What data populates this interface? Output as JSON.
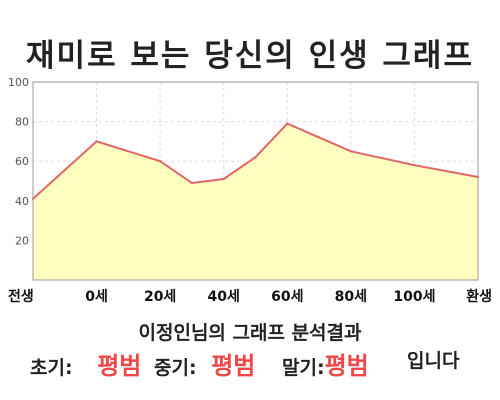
{
  "title": "재미로 보는 당신의 인생 그래프",
  "subtitle": "이정인님의 그래프 분석결과",
  "results": {
    "early_label": "초기:",
    "early_value": "평범",
    "mid_label": "중기:",
    "mid_value": "평범",
    "late_label": "말기:",
    "late_value": "평범",
    "ending": "입니다"
  },
  "colors": {
    "line": "#e06666",
    "fill": "#ffffc0",
    "grade": "#f04848"
  },
  "chart_data": {
    "type": "area",
    "title": "재미로 보는 당신의 인생 그래프",
    "x_categories": [
      "전생",
      "0세",
      "20세",
      "40세",
      "60세",
      "80세",
      "100세",
      "환생"
    ],
    "y_ticks": [
      "100",
      "80",
      "60",
      "40",
      "20"
    ],
    "ylim": [
      0,
      100
    ],
    "grid": true,
    "points": [
      {
        "x": "전생",
        "y": 41
      },
      {
        "x": "0세",
        "y": 70
      },
      {
        "x": "20세",
        "y": 60
      },
      {
        "x": "30세",
        "y": 49
      },
      {
        "x": "40세",
        "y": 51
      },
      {
        "x": "50세",
        "y": 62
      },
      {
        "x": "60세",
        "y": 79
      },
      {
        "x": "70세",
        "y": 72
      },
      {
        "x": "80세",
        "y": 65
      },
      {
        "x": "100세",
        "y": 58
      },
      {
        "x": "환생",
        "y": 52
      }
    ]
  }
}
